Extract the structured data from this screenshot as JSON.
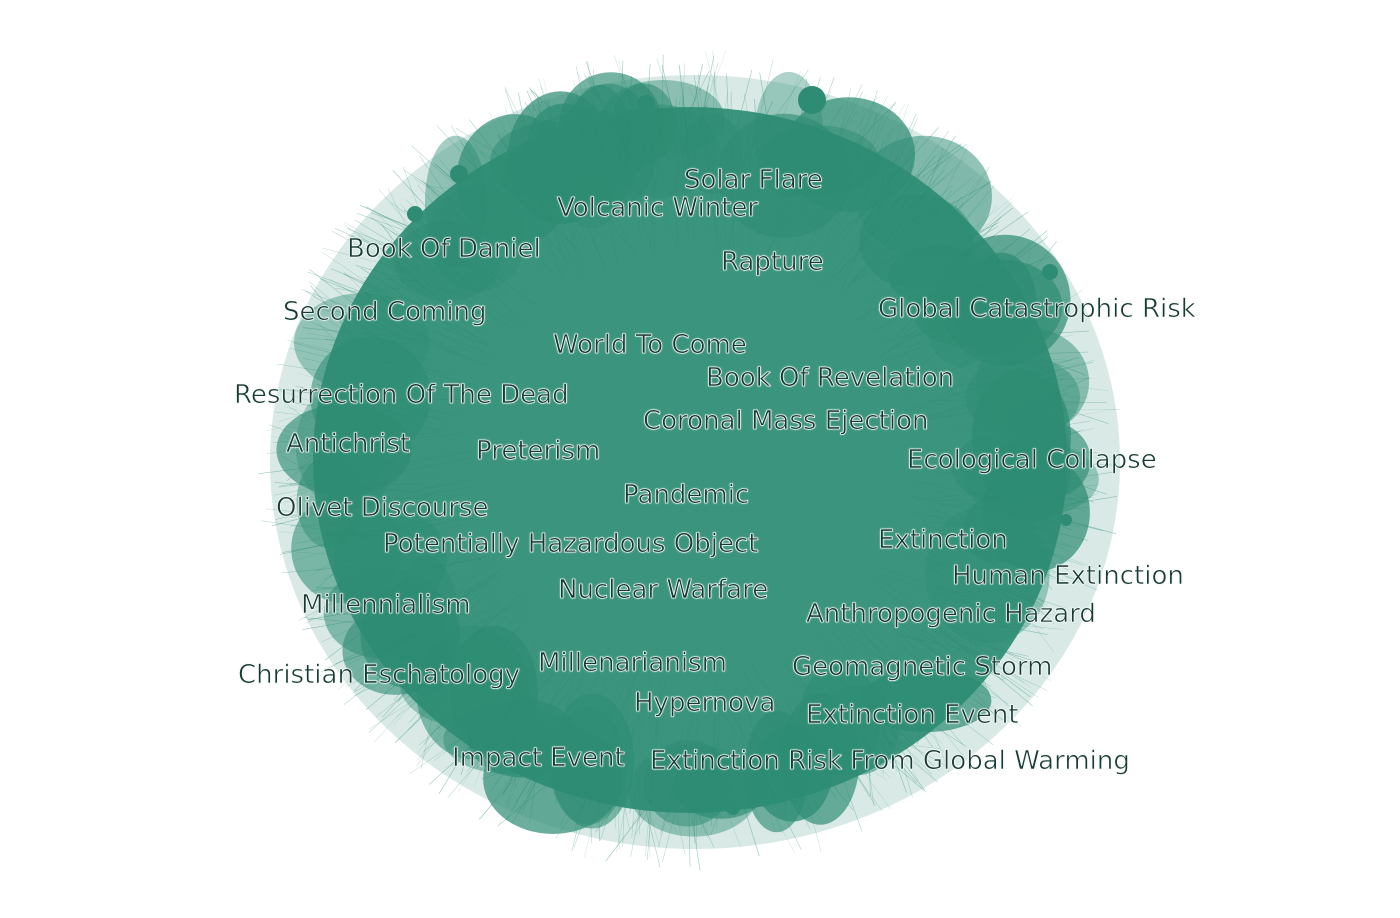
{
  "colors": {
    "background": "#ffffff",
    "network": "#2e8c74",
    "edge": "#2e8c74",
    "label": "#173b34"
  },
  "node_labels": [
    "Solar Flare",
    "Volcanic Winter",
    "Book Of Daniel",
    "Rapture",
    "Global Catastrophic Risk",
    "Second Coming",
    "World To Come",
    "Book Of Revelation",
    "Resurrection Of The Dead",
    "Coronal Mass Ejection",
    "Antichrist",
    "Preterism",
    "Ecological Collapse",
    "Pandemic",
    "Olivet Discourse",
    "Potentially Hazardous Object",
    "Extinction",
    "Human Extinction",
    "Nuclear Warfare",
    "Millennialism",
    "Anthropogenic Hazard",
    "Millenarianism",
    "Geomagnetic Storm",
    "Christian Eschatology",
    "Hypernova",
    "Extinction Event",
    "Impact Event",
    "Extinction Risk From Global Warming"
  ]
}
